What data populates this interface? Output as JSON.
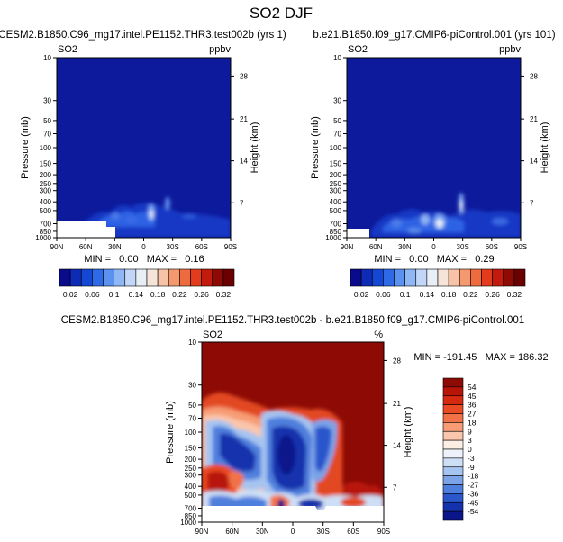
{
  "title": "SO2 DJF",
  "chart_data": [
    {
      "type": "heatmap",
      "title": "CESM2.B1850.C96_mg17.intel.PE1152.THR3.test002b (yrs 1)",
      "left_label": "SO2",
      "right_label": "ppbv",
      "xlabel": "",
      "ylabel": "Pressure (mb)",
      "ylabel_right": "Height (km)",
      "x_ticks": [
        "90N",
        "60N",
        "30N",
        "0",
        "30S",
        "60S",
        "90S"
      ],
      "y_ticks": [
        "10",
        "30",
        "50",
        "70",
        "100",
        "150",
        "200",
        "250",
        "300",
        "400",
        "500",
        "700",
        "850",
        "1000"
      ],
      "y_ticks_right": [
        "28",
        "21",
        "14",
        "7"
      ],
      "ylim": [
        1000,
        10
      ],
      "y_scale": "log",
      "stats": "MIN =   0.00   MAX =   0.16",
      "min": 0.0,
      "max": 0.16
    },
    {
      "type": "heatmap",
      "title": "b.e21.B1850.f09_g17.CMIP6-piControl.001 (yrs 101)",
      "left_label": "SO2",
      "right_label": "ppbv",
      "xlabel": "",
      "ylabel": "Pressure (mb)",
      "ylabel_right": "Height (km)",
      "x_ticks": [
        "90N",
        "60N",
        "30N",
        "0",
        "30S",
        "60S",
        "90S"
      ],
      "y_ticks": [
        "10",
        "30",
        "50",
        "70",
        "100",
        "150",
        "200",
        "250",
        "300",
        "400",
        "500",
        "700",
        "850",
        "1000"
      ],
      "y_ticks_right": [
        "28",
        "21",
        "14",
        "7"
      ],
      "ylim": [
        1000,
        10
      ],
      "y_scale": "log",
      "stats": "MIN =   0.00   MAX =   0.29",
      "min": 0.0,
      "max": 0.29
    },
    {
      "type": "heatmap",
      "title": "CESM2.B1850.C96_mg17.intel.PE1152.THR3.test002b - b.e21.B1850.f09_g17.CMIP6-piControl.001",
      "left_label": "SO2",
      "right_label": "%",
      "xlabel": "",
      "ylabel": "Pressure (mb)",
      "ylabel_right": "Height (km)",
      "x_ticks": [
        "90N",
        "60N",
        "30N",
        "0",
        "30S",
        "60S",
        "90S"
      ],
      "y_ticks": [
        "10",
        "30",
        "50",
        "70",
        "100",
        "150",
        "200",
        "250",
        "300",
        "400",
        "500",
        "700",
        "850",
        "1000"
      ],
      "y_ticks_right": [
        "28",
        "21",
        "14",
        "7"
      ],
      "ylim": [
        1000,
        10
      ],
      "y_scale": "log",
      "stats": "MIN = -191.45   MAX = 186.32",
      "min": -191.45,
      "max": 186.32
    }
  ],
  "colorbars": {
    "abs": {
      "labels": [
        "0.02",
        "0.06",
        "0.1",
        "0.14",
        "0.18",
        "0.22",
        "0.26",
        "0.32"
      ],
      "colors": [
        "#0a0a8c",
        "#0d2bb5",
        "#1447d4",
        "#2e6ae8",
        "#5b92f0",
        "#8fb6f5",
        "#c2d7f7",
        "#e8eef6",
        "#f6e4d8",
        "#f7c2a5",
        "#f4996f",
        "#ee6b3f",
        "#e23c1c",
        "#c21a0c",
        "#8e0b05",
        "#6a0000"
      ]
    },
    "diff": {
      "labels": [
        "54",
        "45",
        "36",
        "27",
        "18",
        "9",
        "3",
        "0",
        "-3",
        "-9",
        "-18",
        "-27",
        "-36",
        "-45",
        "-54"
      ],
      "colors": [
        "#8e0b05",
        "#b81508",
        "#d62a10",
        "#ea4a24",
        "#f27247",
        "#f79c74",
        "#fac6ac",
        "#fdeee4",
        "#eef3fb",
        "#cddff6",
        "#a6c4f0",
        "#7aa3e8",
        "#4f7fdd",
        "#2a57cc",
        "#1432ad",
        "#0a158a"
      ]
    }
  }
}
